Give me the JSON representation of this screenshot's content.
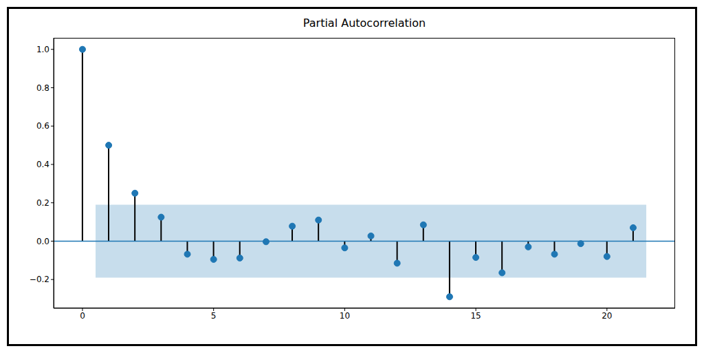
{
  "chart_data": {
    "type": "stem",
    "title": "Partial Autocorrelation",
    "x": [
      0,
      1,
      2,
      3,
      4,
      5,
      6,
      7,
      8,
      9,
      10,
      11,
      12,
      13,
      14,
      15,
      16,
      17,
      18,
      19,
      20,
      21
    ],
    "values": [
      1.0,
      0.5,
      0.25,
      0.125,
      -0.068,
      -0.095,
      -0.088,
      -0.003,
      0.078,
      0.11,
      -0.035,
      0.027,
      -0.115,
      0.085,
      -0.29,
      -0.085,
      -0.165,
      -0.03,
      -0.068,
      -0.013,
      -0.08,
      0.07
    ],
    "color": "#1f77b4",
    "marker": "circle",
    "xlim": [
      -1.1,
      22.6
    ],
    "xticks": [
      0,
      5,
      10,
      15,
      20
    ],
    "ylim": [
      -0.35,
      1.06
    ],
    "yticks": [
      {
        "value": -0.2,
        "label": "−0.2"
      },
      {
        "value": 0,
        "label": "0.0"
      },
      {
        "value": 0.2,
        "label": "0.2"
      },
      {
        "value": 0.4,
        "label": "0.4"
      },
      {
        "value": 0.6,
        "label": "0.6"
      },
      {
        "value": 0.8,
        "label": "0.8"
      },
      {
        "value": 1.0,
        "label": "1.0"
      }
    ],
    "confidence_interval": {
      "x": [
        0.5,
        21.5
      ],
      "y": [
        -0.19,
        0.19
      ]
    },
    "zero_line": 0,
    "grid": false
  }
}
